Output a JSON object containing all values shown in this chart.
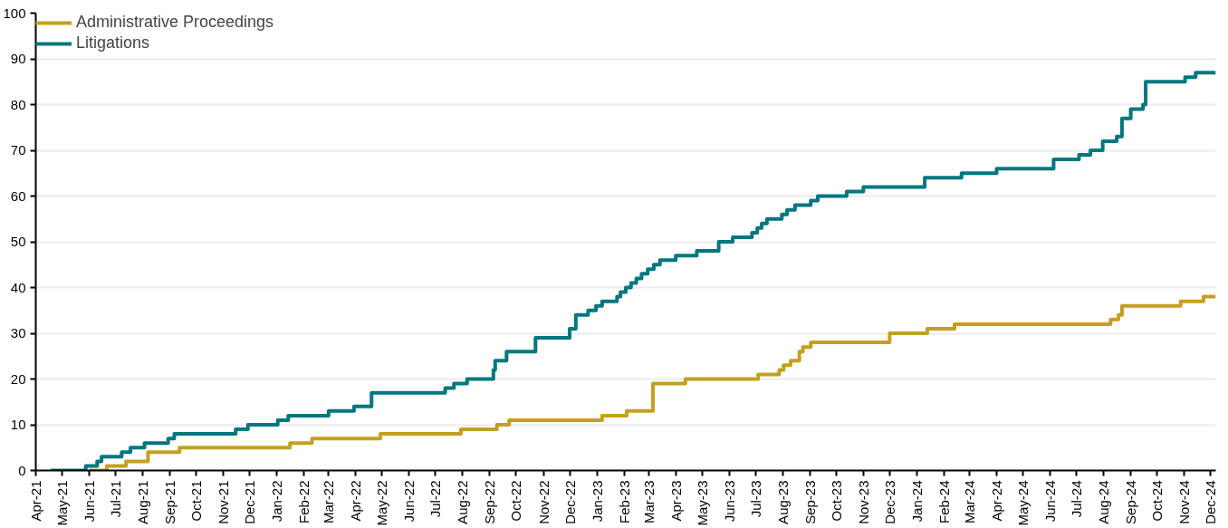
{
  "chart_data": {
    "type": "step",
    "xlim": [
      "2021-04-01",
      "2024-12-07"
    ],
    "xticks": [
      {
        "value": "2021-04",
        "label": "Apr-21"
      },
      {
        "value": "2021-05",
        "label": "May-21"
      },
      {
        "value": "2021-06",
        "label": "Jun-21"
      },
      {
        "value": "2021-07",
        "label": "Jul-21"
      },
      {
        "value": "2021-08",
        "label": "Aug-21"
      },
      {
        "value": "2021-09",
        "label": "Sep-21"
      },
      {
        "value": "2021-10",
        "label": "Oct-21"
      },
      {
        "value": "2021-11",
        "label": "Nov-21"
      },
      {
        "value": "2021-12",
        "label": "Dec-21"
      },
      {
        "value": "2022-01",
        "label": "Jan-22"
      },
      {
        "value": "2022-02",
        "label": "Feb-22"
      },
      {
        "value": "2022-03",
        "label": "Mar-22"
      },
      {
        "value": "2022-04",
        "label": "Apr-22"
      },
      {
        "value": "2022-05",
        "label": "May-22"
      },
      {
        "value": "2022-06",
        "label": "Jun-22"
      },
      {
        "value": "2022-07",
        "label": "Jul-22"
      },
      {
        "value": "2022-08",
        "label": "Aug-22"
      },
      {
        "value": "2022-09",
        "label": "Sep-22"
      },
      {
        "value": "2022-10",
        "label": "Oct-22"
      },
      {
        "value": "2022-11",
        "label": "Nov-22"
      },
      {
        "value": "2022-12",
        "label": "Dec-22"
      },
      {
        "value": "2023-01",
        "label": "Jan-23"
      },
      {
        "value": "2023-02",
        "label": "Feb-23"
      },
      {
        "value": "2023-03",
        "label": "Mar-23"
      },
      {
        "value": "2023-04",
        "label": "Apr-23"
      },
      {
        "value": "2023-05",
        "label": "May-23"
      },
      {
        "value": "2023-06",
        "label": "Jun-23"
      },
      {
        "value": "2023-07",
        "label": "Jul-23"
      },
      {
        "value": "2023-08",
        "label": "Aug-23"
      },
      {
        "value": "2023-09",
        "label": "Sep-23"
      },
      {
        "value": "2023-10",
        "label": "Oct-23"
      },
      {
        "value": "2023-11",
        "label": "Nov-23"
      },
      {
        "value": "2023-12",
        "label": "Dec-23"
      },
      {
        "value": "2024-01",
        "label": "Jan-24"
      },
      {
        "value": "2024-02",
        "label": "Feb-24"
      },
      {
        "value": "2024-03",
        "label": "Mar-24"
      },
      {
        "value": "2024-04",
        "label": "Apr-24"
      },
      {
        "value": "2024-05",
        "label": "May-24"
      },
      {
        "value": "2024-06",
        "label": "Jun-24"
      },
      {
        "value": "2024-07",
        "label": "Jul-24"
      },
      {
        "value": "2024-08",
        "label": "Aug-24"
      },
      {
        "value": "2024-09",
        "label": "Sep-24"
      },
      {
        "value": "2024-10",
        "label": "Oct-24"
      },
      {
        "value": "2024-11",
        "label": "Nov-24"
      },
      {
        "value": "2024-12",
        "label": "Dec-24"
      }
    ],
    "ylim": [
      0,
      100
    ],
    "yticks": [
      0,
      10,
      20,
      30,
      40,
      50,
      60,
      70,
      80,
      90,
      100
    ],
    "grid": "y",
    "legend": "top left",
    "marker": "none",
    "line_style": "solid",
    "series": [
      {
        "name": "Administrative Proceedings",
        "color": "#c5a020",
        "x": [
          "2021-06-01",
          "2021-06-21",
          "2021-07-13",
          "2021-08-07",
          "2021-09-12",
          "2022-01-16",
          "2022-02-10",
          "2022-04-29",
          "2022-07-30",
          "2022-09-09",
          "2022-09-23",
          "2023-01-07",
          "2023-02-04",
          "2023-03-06",
          "2023-04-12",
          "2023-07-04",
          "2023-07-28",
          "2023-08-02",
          "2023-08-10",
          "2023-08-20",
          "2023-08-24",
          "2023-09-02",
          "2023-12-01",
          "2024-01-13",
          "2024-02-13",
          "2024-08-09",
          "2024-08-18",
          "2024-08-22",
          "2024-10-28",
          "2024-11-23",
          "2024-12-07"
        ],
        "values": [
          0,
          1,
          2,
          4,
          5,
          6,
          7,
          8,
          9,
          10,
          11,
          12,
          13,
          19,
          20,
          21,
          22,
          23,
          24,
          26,
          27,
          28,
          30,
          31,
          32,
          33,
          34,
          36,
          37,
          38,
          38
        ]
      },
      {
        "name": "Litigations",
        "color": "#00777f",
        "x": [
          "2021-04-18",
          "2021-05-28",
          "2021-06-10",
          "2021-06-15",
          "2021-07-08",
          "2021-07-18",
          "2021-08-03",
          "2021-08-30",
          "2021-09-06",
          "2021-11-15",
          "2021-11-29",
          "2022-01-02",
          "2022-01-14",
          "2022-03-01",
          "2022-03-30",
          "2022-04-19",
          "2022-07-12",
          "2022-07-22",
          "2022-08-06",
          "2022-09-05",
          "2022-09-07",
          "2022-09-20",
          "2022-10-23",
          "2022-12-01",
          "2022-12-08",
          "2022-12-22",
          "2022-12-31",
          "2023-01-07",
          "2023-01-24",
          "2023-01-28",
          "2023-02-03",
          "2023-02-09",
          "2023-02-15",
          "2023-02-21",
          "2023-02-28",
          "2023-03-07",
          "2023-03-14",
          "2023-04-01",
          "2023-04-25",
          "2023-05-20",
          "2023-06-05",
          "2023-06-27",
          "2023-07-03",
          "2023-07-08",
          "2023-07-14",
          "2023-07-31",
          "2023-08-06",
          "2023-08-15",
          "2023-09-02",
          "2023-09-10",
          "2023-10-13",
          "2023-11-01",
          "2024-01-10",
          "2024-02-21",
          "2024-04-01",
          "2024-06-05",
          "2024-07-04",
          "2024-07-17",
          "2024-07-31",
          "2024-08-16",
          "2024-08-22",
          "2024-09-01",
          "2024-09-15",
          "2024-09-18",
          "2024-11-02",
          "2024-11-14",
          "2024-12-07"
        ],
        "values": [
          0,
          1,
          2,
          3,
          4,
          5,
          6,
          7,
          8,
          9,
          10,
          11,
          12,
          13,
          14,
          17,
          18,
          19,
          20,
          22,
          24,
          26,
          29,
          31,
          34,
          35,
          36,
          37,
          38,
          39,
          40,
          41,
          42,
          43,
          44,
          45,
          46,
          47,
          48,
          50,
          51,
          52,
          53,
          54,
          55,
          56,
          57,
          58,
          59,
          60,
          61,
          62,
          64,
          65,
          66,
          68,
          69,
          70,
          72,
          73,
          77,
          79,
          80,
          85,
          86,
          87,
          87
        ]
      }
    ]
  }
}
